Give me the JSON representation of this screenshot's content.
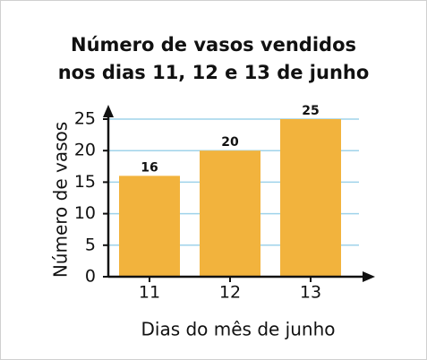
{
  "chart_data": {
    "type": "bar",
    "title": "Número de vasos vendidos\nnos dias 11, 12 e 13 de junho",
    "x_label": "Dias do mês de junho",
    "y_label": "Número de vasos",
    "categories": [
      "11",
      "12",
      "13"
    ],
    "values": [
      16,
      20,
      25
    ],
    "color": "#f2b33d",
    "ylim": [
      0,
      25
    ],
    "yticks": [
      0,
      5,
      10,
      15,
      20,
      25
    ],
    "grid": true
  }
}
